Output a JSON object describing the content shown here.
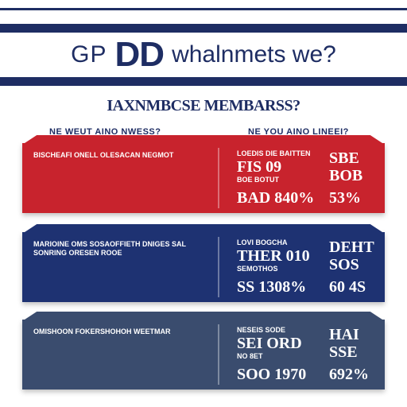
{
  "banner": {
    "word1": "GP",
    "word2": "DD",
    "word3": "whalnmets we?"
  },
  "subheading": "IAXNMBCSE MEMBARSS?",
  "columns": {
    "left": "NE WEUT AINO NWESS?",
    "right": "NE YOU AINO LINEEI?"
  },
  "panels": [
    {
      "left_text": "BISCHEAFI ONELL OLESACAN NEGMOT",
      "right_a_line": "LOEDIS DIE BAITTEN",
      "right_a_big": "FIS 09",
      "right_a_sub": "BOE BOTUT",
      "stat_a": "BAD 840%",
      "right_b_1": "SBE",
      "right_b_2": "BOB",
      "stat_b": "53%"
    },
    {
      "left_text": "MARIOINE OMS SOSAOFFIETH DNIGES SAL SONRING ORESEN ROOE",
      "right_a_line": "LOVI BOGCHA",
      "right_a_big": "THER 010",
      "right_a_sub": "SEMOTHOS",
      "stat_a": "SS 1308%",
      "right_b_1": "DEHT",
      "right_b_2": "SOS",
      "stat_b": "60 4S"
    },
    {
      "left_text": "OMISHOON FOKERSHOHOH WEETMAR",
      "right_a_line": "NESEIS SODE",
      "right_a_big": "SEI ORD",
      "right_a_sub": "NO 8ET",
      "stat_a": "SOO 1970",
      "right_b_1": "HAI",
      "right_b_2": "SSE",
      "stat_b": "692%"
    }
  ],
  "colors": {
    "navy": "#1e2d63",
    "red": "#c8232d",
    "blue": "#1e3272",
    "slate": "#3a4c6e"
  }
}
